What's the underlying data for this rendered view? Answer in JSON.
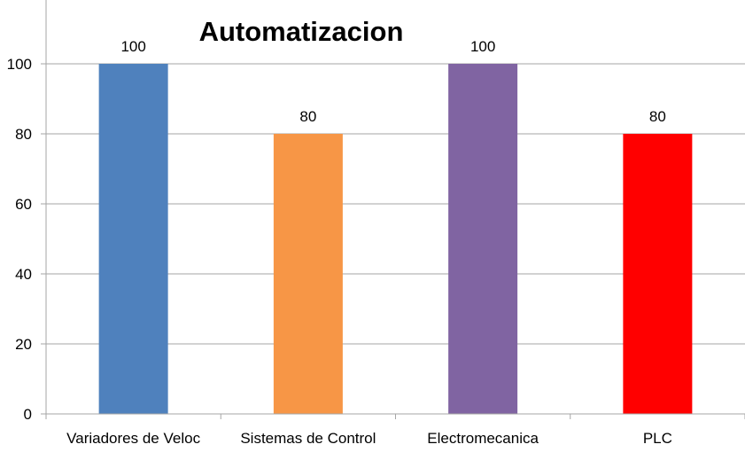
{
  "chart_data": {
    "type": "bar",
    "title": "Automatizacion",
    "categories": [
      "Variadores de Veloc",
      "Sistemas de Control",
      "Electromecanica",
      "PLC"
    ],
    "values": [
      100,
      80,
      100,
      80
    ],
    "colors": [
      "#4f81bd",
      "#f79646",
      "#8064a2",
      "#ff0000"
    ],
    "ylim": [
      0,
      100
    ],
    "yticks": [
      0,
      20,
      40,
      60,
      80,
      100
    ],
    "xlabel": "",
    "ylabel": "",
    "grid": true,
    "legend": "none"
  }
}
